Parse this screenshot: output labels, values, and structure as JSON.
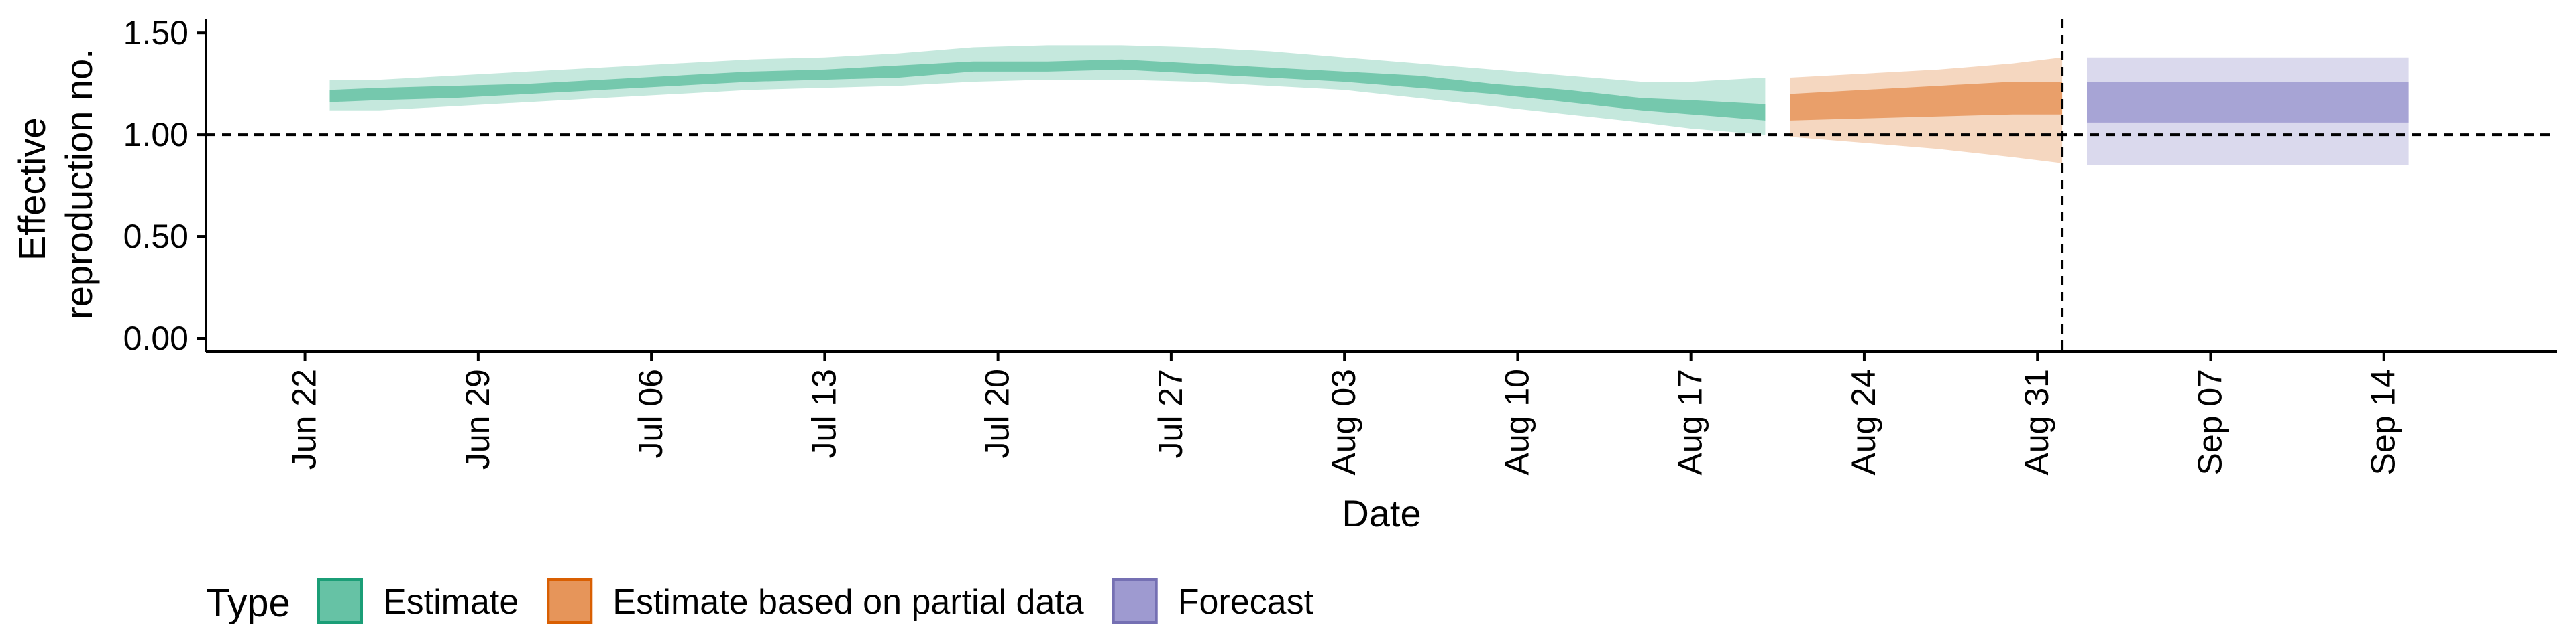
{
  "chart_data": {
    "type": "area",
    "xlabel": "Date",
    "ylabel_lines": [
      "Effective",
      "reproduction no."
    ],
    "x_range": [
      "2022-06-18",
      "2022-09-21"
    ],
    "ylim": [
      0,
      1.55
    ],
    "y_ticks": [
      0,
      0.5,
      1,
      1.5
    ],
    "y_tick_labels": [
      "0.00",
      "0.50",
      "1.00",
      "1.50"
    ],
    "x_ticks": [
      "2022-06-22",
      "2022-06-29",
      "2022-07-06",
      "2022-07-13",
      "2022-07-20",
      "2022-07-27",
      "2022-08-03",
      "2022-08-10",
      "2022-08-17",
      "2022-08-24",
      "2022-08-31",
      "2022-09-07",
      "2022-09-14"
    ],
    "x_tick_labels": [
      "Jun 22",
      "Jun 29",
      "Jul 06",
      "Jul 13",
      "Jul 20",
      "Jul 27",
      "Aug 03",
      "Aug 10",
      "Aug 17",
      "Aug 24",
      "Aug 31",
      "Sep 07",
      "Sep 14"
    ],
    "reference_line_y": 1.0,
    "forecast_date_line": "2022-09-01",
    "grid": false,
    "legend_position": "bottom-left",
    "legend_title": "Type",
    "series": [
      {
        "name": "Estimate",
        "color": "#1b9e77",
        "fill": "#66c2a5",
        "dates": [
          "2022-06-23",
          "2022-06-25",
          "2022-06-28",
          "2022-07-01",
          "2022-07-04",
          "2022-07-07",
          "2022-07-10",
          "2022-07-13",
          "2022-07-16",
          "2022-07-19",
          "2022-07-22",
          "2022-07-25",
          "2022-07-28",
          "2022-07-31",
          "2022-08-03",
          "2022-08-06",
          "2022-08-09",
          "2022-08-12",
          "2022-08-15",
          "2022-08-17",
          "2022-08-20"
        ],
        "lower_90": [
          1.12,
          1.12,
          1.14,
          1.16,
          1.18,
          1.2,
          1.22,
          1.23,
          1.24,
          1.26,
          1.27,
          1.27,
          1.26,
          1.24,
          1.22,
          1.18,
          1.14,
          1.1,
          1.06,
          1.03,
          1.0
        ],
        "lower_50": [
          1.16,
          1.17,
          1.18,
          1.2,
          1.22,
          1.24,
          1.26,
          1.27,
          1.28,
          1.31,
          1.31,
          1.32,
          1.3,
          1.28,
          1.26,
          1.23,
          1.2,
          1.16,
          1.12,
          1.1,
          1.07
        ],
        "median": [
          1.19,
          1.2,
          1.21,
          1.22,
          1.24,
          1.26,
          1.28,
          1.29,
          1.31,
          1.33,
          1.33,
          1.34,
          1.32,
          1.3,
          1.28,
          1.26,
          1.22,
          1.19,
          1.15,
          1.13,
          1.1
        ],
        "upper_50": [
          1.22,
          1.23,
          1.24,
          1.25,
          1.27,
          1.29,
          1.31,
          1.32,
          1.34,
          1.36,
          1.36,
          1.37,
          1.35,
          1.33,
          1.31,
          1.29,
          1.25,
          1.22,
          1.18,
          1.17,
          1.15
        ],
        "upper_90": [
          1.27,
          1.27,
          1.29,
          1.31,
          1.33,
          1.35,
          1.37,
          1.38,
          1.4,
          1.43,
          1.44,
          1.44,
          1.43,
          1.41,
          1.38,
          1.35,
          1.32,
          1.29,
          1.26,
          1.26,
          1.28
        ]
      },
      {
        "name": "Estimate based on partial data",
        "color": "#d95f02",
        "fill": "#e6955a",
        "dates": [
          "2022-08-21",
          "2022-08-24",
          "2022-08-27",
          "2022-08-30",
          "2022-09-01"
        ],
        "lower_90": [
          0.99,
          0.96,
          0.93,
          0.89,
          0.86
        ],
        "lower_50": [
          1.07,
          1.08,
          1.09,
          1.1,
          1.1
        ],
        "median": [
          1.13,
          1.15,
          1.17,
          1.18,
          1.18
        ],
        "upper_50": [
          1.2,
          1.22,
          1.24,
          1.26,
          1.26
        ],
        "upper_90": [
          1.28,
          1.3,
          1.32,
          1.35,
          1.38
        ]
      },
      {
        "name": "Forecast",
        "color": "#7570b3",
        "fill": "#9e9ad0",
        "dates": [
          "2022-09-02",
          "2022-09-15"
        ],
        "lower_90": [
          0.85,
          0.85
        ],
        "lower_50": [
          1.06,
          1.06
        ],
        "median": [
          1.16,
          1.16
        ],
        "upper_50": [
          1.26,
          1.26
        ],
        "upper_90": [
          1.38,
          1.38
        ]
      }
    ]
  }
}
